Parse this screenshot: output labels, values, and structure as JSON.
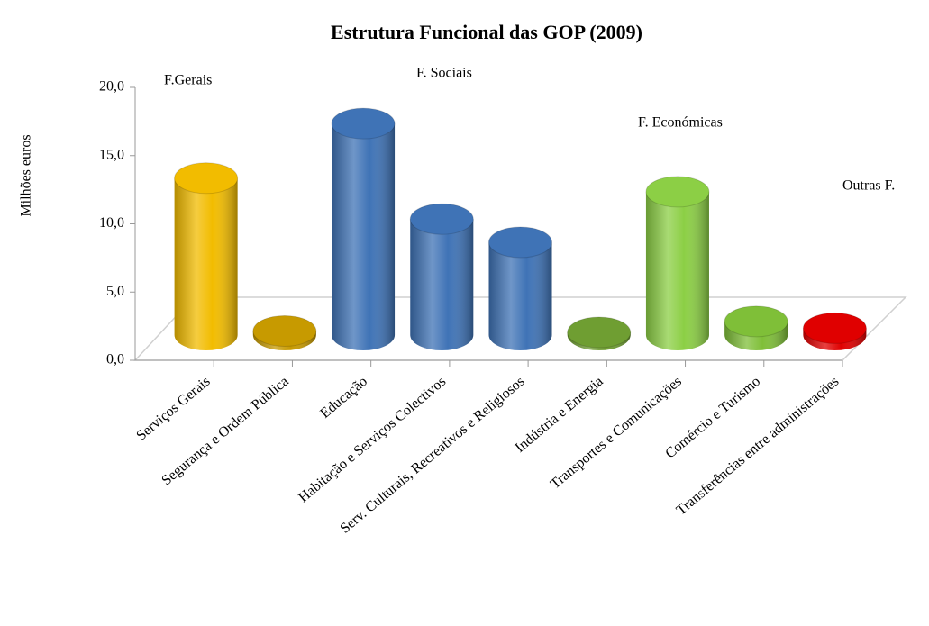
{
  "chart_data": {
    "type": "bar3d",
    "title": "Estrutura Funcional das GOP (2009)",
    "y_label": "Milhões euros",
    "categories": [
      "Serviços Gerais",
      "Segurança e Ordem Pública",
      "Educação",
      "Habitação e Serviços Colectivos",
      "Serv. Culturais, Recreativos e Religiosos",
      "Indústria e Energia",
      "Transportes e Comunicações",
      "Comércio e Turismo",
      "Transferências entre administrações"
    ],
    "values": [
      11.5,
      0.3,
      15.5,
      8.5,
      6.8,
      0.2,
      10.5,
      1.0,
      0.5
    ],
    "colors": [
      "#f2bc00",
      "#c79a00",
      "#3f73b6",
      "#3f73b6",
      "#3f73b6",
      "#6f9e32",
      "#8ccf45",
      "#7fbf38",
      "#e00000"
    ],
    "ylim": [
      0,
      20
    ],
    "yticks": [
      {
        "value": 0,
        "label": "0,0"
      },
      {
        "value": 5,
        "label": "5,0"
      },
      {
        "value": 10,
        "label": "10,0"
      },
      {
        "value": 15,
        "label": "15,0"
      },
      {
        "value": 20,
        "label": "20,0"
      }
    ],
    "annotations": [
      "F.Gerais",
      "F. Sociais",
      "F. Económicas",
      "Outras F."
    ]
  }
}
